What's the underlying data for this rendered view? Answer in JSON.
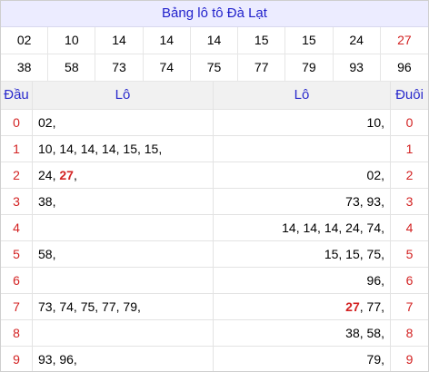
{
  "title": "Bảng lô tô Đà Lạt",
  "numbers_row1": [
    "02",
    "10",
    "14",
    "14",
    "14",
    "15",
    "15",
    "24",
    "27"
  ],
  "numbers_row2": [
    "38",
    "58",
    "73",
    "74",
    "75",
    "77",
    "79",
    "93",
    "96"
  ],
  "highlight_number": "27",
  "headers": {
    "dau": "Đầu",
    "lo_left": "Lô",
    "lo_right": "Lô",
    "duoi": "Đuôi"
  },
  "rows": [
    {
      "digit": "0",
      "left": "02,",
      "right": "10,"
    },
    {
      "digit": "1",
      "left": "10, 14, 14, 14, 15, 15,",
      "right": ""
    },
    {
      "digit": "2",
      "left_parts": [
        "24, ",
        "27",
        ","
      ],
      "right": "02,"
    },
    {
      "digit": "3",
      "left": "38,",
      "right": "73, 93,"
    },
    {
      "digit": "4",
      "left": "",
      "right": "14, 14, 14, 24, 74,"
    },
    {
      "digit": "5",
      "left": "58,",
      "right": "15, 15, 75,"
    },
    {
      "digit": "6",
      "left": "",
      "right": "96,"
    },
    {
      "digit": "7",
      "left": "73, 74, 75, 77, 79,",
      "right_parts": [
        "27",
        ", 77,"
      ]
    },
    {
      "digit": "8",
      "left": "",
      "right": "38, 58,"
    },
    {
      "digit": "9",
      "left": "93, 96,",
      "right": "79,"
    }
  ],
  "colors": {
    "accent_blue": "#2222cc",
    "red": "#d32222",
    "title_bg": "#ececff"
  }
}
